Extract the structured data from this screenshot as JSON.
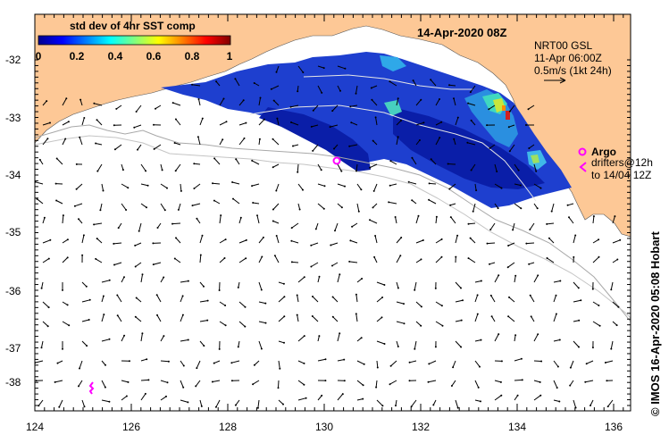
{
  "title": "14-Apr-2020 08Z",
  "colorbar": {
    "title": "std dev of 4hr SST comp",
    "ticks": [
      "0",
      "0.2",
      "0.4",
      "0.6",
      "0.8",
      "1"
    ],
    "range": [
      0,
      1
    ]
  },
  "axes": {
    "x_ticks": [
      "124",
      "126",
      "128",
      "130",
      "132",
      "134",
      "136"
    ],
    "y_ticks": [
      "-32",
      "-33",
      "-34",
      "-35",
      "-36",
      "-37",
      "-38"
    ],
    "lon_range": [
      124,
      136.6
    ],
    "lat_range": [
      -31.45,
      -38.3
    ]
  },
  "current_info": {
    "line1": "NRT00 GSL",
    "line2": "11-Apr 06:00Z",
    "line3": "0.5m/s (1kt 24h)"
  },
  "argo_label": "Argo",
  "drifters": {
    "line1": "drifters@12h",
    "line2": "to 14/04 12Z"
  },
  "credit": "© IMOS 16-Apr-2020 05:08 Hobart",
  "colors": {
    "land": "#FDC896",
    "argo": "#FF00FF",
    "bathy": "#A8A8A8"
  }
}
